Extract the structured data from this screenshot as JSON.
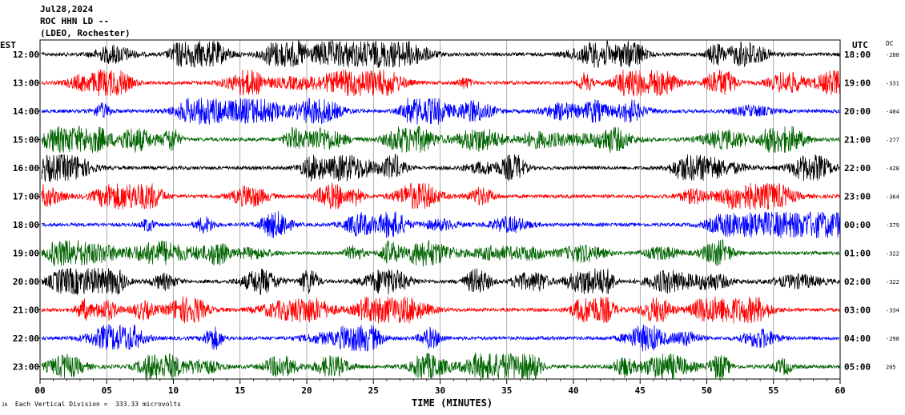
{
  "header": {
    "date": "Jul28,2024",
    "station": "ROC HHN LD --",
    "network": "(LDEO, Rochester)"
  },
  "labels": {
    "left_zone": "EST",
    "right_zone": "UTC",
    "dc_column": "DC",
    "footnote": "Each Vertical Division =  333.33 microvolts",
    "footnote_mark": "JA"
  },
  "chart_data": {
    "type": "line",
    "title": "",
    "xlabel": "TIME (MINUTES)",
    "x_ticks": [
      "00",
      "05",
      "10",
      "15",
      "20",
      "25",
      "30",
      "35",
      "40",
      "45",
      "50",
      "55",
      "60"
    ],
    "xlim": [
      0,
      60
    ],
    "grid": true,
    "vertical_division_microvolts": 333.33,
    "traces": [
      {
        "est": "12:00",
        "utc": "18:00",
        "dc": "-288",
        "color": "#000000"
      },
      {
        "est": "13:00",
        "utc": "19:00",
        "dc": "-331",
        "color": "#ff0000"
      },
      {
        "est": "14:00",
        "utc": "20:00",
        "dc": "-404",
        "color": "#0000ff"
      },
      {
        "est": "15:00",
        "utc": "21:00",
        "dc": "-277",
        "color": "#006400"
      },
      {
        "est": "16:00",
        "utc": "22:00",
        "dc": "-428",
        "color": "#000000"
      },
      {
        "est": "17:00",
        "utc": "23:00",
        "dc": "-364",
        "color": "#ff0000"
      },
      {
        "est": "18:00",
        "utc": "00:00",
        "dc": "-379",
        "color": "#0000ff"
      },
      {
        "est": "19:00",
        "utc": "01:00",
        "dc": "-322",
        "color": "#006400"
      },
      {
        "est": "20:00",
        "utc": "02:00",
        "dc": "-322",
        "color": "#000000"
      },
      {
        "est": "21:00",
        "utc": "03:00",
        "dc": "-334",
        "color": "#ff0000"
      },
      {
        "est": "22:00",
        "utc": "04:00",
        "dc": "-298",
        "color": "#0000ff"
      },
      {
        "est": "23:00",
        "utc": "05:00",
        "dc": "205",
        "color": "#006400"
      }
    ]
  }
}
